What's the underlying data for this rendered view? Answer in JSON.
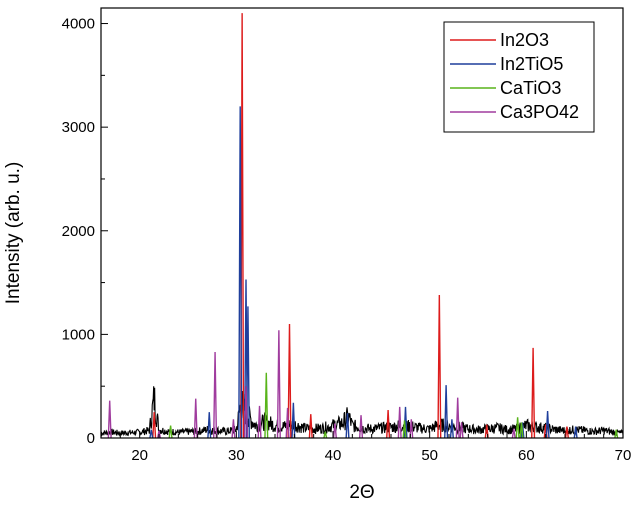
{
  "chart_data": {
    "type": "line",
    "title": "",
    "xlabel": "2Θ",
    "ylabel": "Intensity (arb. u.)",
    "xlim": [
      16,
      70
    ],
    "ylim": [
      0,
      4150
    ],
    "x_ticks": [
      20,
      30,
      40,
      50,
      60,
      70
    ],
    "x_tick_labels": [
      "20",
      "30",
      "40",
      "50",
      "60",
      "70"
    ],
    "y_ticks": [
      0,
      1000,
      2000,
      3000,
      4000
    ],
    "y_tick_labels": [
      "0",
      "1000",
      "2000",
      "3000",
      "4000"
    ],
    "grid": false,
    "legend_position": "top-right",
    "background_pattern": {
      "color": "#000000",
      "x": [
        16,
        17,
        18,
        19,
        20,
        21,
        21.5,
        22,
        23,
        24,
        25,
        26,
        27,
        28,
        29,
        30,
        30.5,
        31,
        32,
        33,
        34,
        35,
        36,
        37,
        38,
        39,
        40,
        41,
        41.6,
        42,
        43,
        44,
        45,
        46,
        47,
        48,
        49,
        50,
        51,
        52,
        53,
        54,
        55,
        56,
        57,
        58,
        59,
        60,
        61,
        62,
        63,
        64,
        65,
        66,
        67,
        68,
        69,
        70
      ],
      "y": [
        60,
        70,
        60,
        65,
        70,
        90,
        480,
        100,
        80,
        70,
        75,
        80,
        100,
        90,
        80,
        100,
        420,
        300,
        150,
        200,
        150,
        140,
        160,
        120,
        110,
        120,
        150,
        180,
        260,
        150,
        120,
        110,
        120,
        130,
        150,
        140,
        120,
        110,
        160,
        140,
        130,
        110,
        100,
        110,
        120,
        100,
        110,
        150,
        130,
        120,
        100,
        90,
        100,
        90,
        80,
        90,
        70,
        60
      ]
    },
    "series": [
      {
        "name": "In2O3",
        "color": "#dd1c1c",
        "peaks": [
          {
            "x": 21.5,
            "y": 250
          },
          {
            "x": 30.6,
            "y": 4100
          },
          {
            "x": 35.5,
            "y": 1100
          },
          {
            "x": 37.7,
            "y": 230
          },
          {
            "x": 45.7,
            "y": 270
          },
          {
            "x": 51.0,
            "y": 1380
          },
          {
            "x": 55.9,
            "y": 130
          },
          {
            "x": 60.7,
            "y": 870
          },
          {
            "x": 62.0,
            "y": 130
          },
          {
            "x": 64.2,
            "y": 110
          }
        ]
      },
      {
        "name": "In2TiO5",
        "color": "#1f3f9c",
        "peaks": [
          {
            "x": 21.2,
            "y": 80
          },
          {
            "x": 27.2,
            "y": 250
          },
          {
            "x": 30.4,
            "y": 3200
          },
          {
            "x": 31.0,
            "y": 1530
          },
          {
            "x": 31.2,
            "y": 1270
          },
          {
            "x": 35.9,
            "y": 340
          },
          {
            "x": 41.5,
            "y": 240
          },
          {
            "x": 47.5,
            "y": 300
          },
          {
            "x": 51.7,
            "y": 510
          },
          {
            "x": 52.3,
            "y": 180
          },
          {
            "x": 59.6,
            "y": 150
          },
          {
            "x": 62.2,
            "y": 260
          },
          {
            "x": 65.1,
            "y": 110
          }
        ]
      },
      {
        "name": "CaTiO3",
        "color": "#58b41a",
        "peaks": [
          {
            "x": 23.2,
            "y": 120
          },
          {
            "x": 33.1,
            "y": 630
          },
          {
            "x": 39.2,
            "y": 60
          },
          {
            "x": 47.4,
            "y": 170
          },
          {
            "x": 59.1,
            "y": 200
          },
          {
            "x": 59.5,
            "y": 150
          },
          {
            "x": 69.3,
            "y": 80
          }
        ]
      },
      {
        "name": "Ca3PO42",
        "color": "#a03c9e",
        "peaks": [
          {
            "x": 16.9,
            "y": 360
          },
          {
            "x": 22.0,
            "y": 70
          },
          {
            "x": 25.8,
            "y": 380
          },
          {
            "x": 27.8,
            "y": 830
          },
          {
            "x": 29.7,
            "y": 180
          },
          {
            "x": 31.0,
            "y": 500
          },
          {
            "x": 32.4,
            "y": 310
          },
          {
            "x": 34.4,
            "y": 1040
          },
          {
            "x": 35.3,
            "y": 290
          },
          {
            "x": 40.2,
            "y": 140
          },
          {
            "x": 42.9,
            "y": 220
          },
          {
            "x": 46.9,
            "y": 300
          },
          {
            "x": 48.1,
            "y": 180
          },
          {
            "x": 52.9,
            "y": 390
          },
          {
            "x": 53.3,
            "y": 150
          },
          {
            "x": 58.7,
            "y": 90
          }
        ]
      }
    ]
  }
}
